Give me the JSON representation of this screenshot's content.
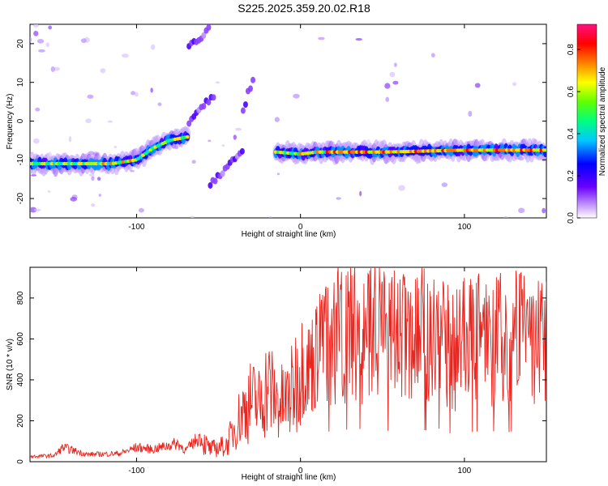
{
  "title": "S225.2025.359.20.02.R18",
  "chart_data": [
    {
      "type": "heatmap",
      "xlabel": "Height of straight line (km)",
      "ylabel": "Frequency (Hz)",
      "xlim": [
        -165,
        150
      ],
      "ylim": [
        -25,
        25
      ],
      "xticks": [
        "-100",
        "0",
        "100"
      ],
      "yticks": [
        "20",
        "10",
        "0",
        "-10",
        "-20"
      ],
      "colorbar": {
        "label": "Normalized spectral amplitude",
        "range": [
          0,
          0.92
        ],
        "ticks": [
          "0.0",
          "0.2",
          "0.4",
          "0.6",
          "0.8"
        ]
      },
      "ridges": [
        {
          "x": [
            -165,
            -140,
            -115,
            -100,
            -90,
            -80,
            -68
          ],
          "y": [
            -11,
            -11,
            -11,
            -10,
            -7,
            -5,
            -4
          ]
        },
        {
          "x": [
            -15,
            0,
            10,
            20,
            50,
            100,
            150
          ],
          "y": [
            -8,
            -8.5,
            -8,
            -8,
            -8,
            -7.5,
            -7.5
          ]
        }
      ],
      "branches": [
        {
          "x": [
            -68,
            -60,
            -52
          ],
          "y": [
            0,
            4,
            7
          ]
        },
        {
          "x": [
            -68,
            -60,
            -55
          ],
          "y": [
            20,
            22,
            24
          ]
        },
        {
          "x": [
            -35,
            -32,
            -28
          ],
          "y": [
            3,
            7,
            12
          ]
        },
        {
          "x": [
            -55,
            -45,
            -35
          ],
          "y": [
            -16,
            -12,
            -8
          ]
        }
      ]
    },
    {
      "type": "line",
      "xlabel": "Height of straight line (km)",
      "ylabel": "SNR (10 * v/v)",
      "xlim": [
        -165,
        150
      ],
      "ylim": [
        0,
        950
      ],
      "xticks": [
        "-100",
        "0",
        "100"
      ],
      "yticks": [
        "0",
        "200",
        "400",
        "600",
        "800"
      ],
      "series": [
        {
          "color": "#e8251e",
          "x": [
            -165,
            -150,
            -145,
            -130,
            -110,
            -100,
            -90,
            -75,
            -70,
            -62,
            -55,
            -45,
            -40,
            -35,
            -30,
            -25,
            -20,
            -15,
            -10,
            -5,
            0,
            5,
            10,
            15,
            20,
            25,
            30,
            35,
            40,
            45,
            50,
            55,
            60,
            65,
            70,
            75,
            80,
            85,
            90,
            95,
            100,
            105,
            110,
            115,
            120,
            125,
            130,
            135,
            140,
            145,
            150
          ],
          "y": [
            25,
            30,
            70,
            35,
            40,
            70,
            60,
            90,
            55,
            120,
            60,
            80,
            170,
            250,
            300,
            280,
            380,
            300,
            280,
            340,
            480,
            460,
            520,
            580,
            600,
            640,
            620,
            650,
            600,
            700,
            620,
            600,
            620,
            580,
            650,
            620,
            600,
            650,
            560,
            540,
            620,
            580,
            600,
            560,
            620,
            560,
            600,
            640,
            540,
            580,
            630
          ]
        }
      ]
    }
  ]
}
